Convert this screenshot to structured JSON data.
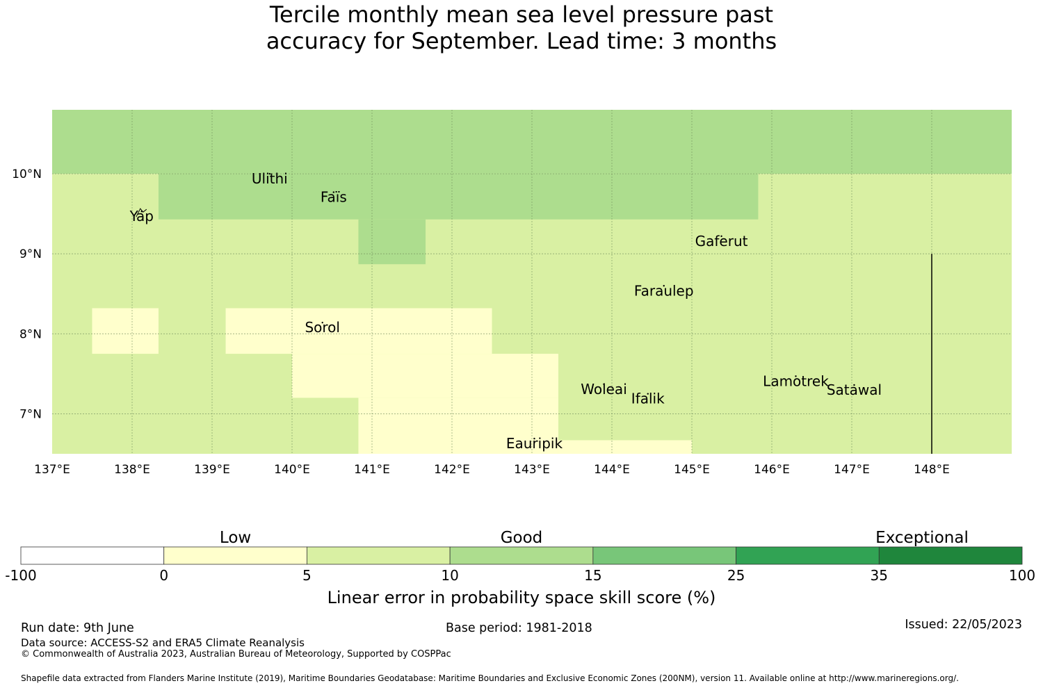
{
  "title": {
    "line1": "Tercile monthly mean sea level pressure past",
    "line2": "accuracy for September. Lead time: 3 months"
  },
  "map": {
    "lon_range": [
      137,
      149
    ],
    "lat_range": [
      6.5,
      10.8
    ],
    "grid_cell_deg": 0.833,
    "x_ticks": [
      "137°E",
      "138°E",
      "139°E",
      "140°E",
      "141°E",
      "142°E",
      "143°E",
      "144°E",
      "145°E",
      "146°E",
      "147°E",
      "148°E"
    ],
    "y_ticks": [
      "10°N",
      "9°N",
      "8°N",
      "7°N"
    ],
    "class_colors": {
      "neg": "#ffffff",
      "low": "#ffffcc",
      "good_low": "#d9f0a3",
      "good_high": "#addd8e",
      "good_top": "#78c679",
      "exc_low": "#31a354",
      "exc_high": "#1f863c"
    },
    "regions": [
      {
        "lon": [
          137.0,
          149.0
        ],
        "lat": [
          10.0,
          10.8
        ],
        "class": "good_high"
      },
      {
        "lon": [
          137.0,
          149.0
        ],
        "lat": [
          6.5,
          10.0
        ],
        "class": "good_low"
      },
      {
        "lon": [
          138.33,
          145.83
        ],
        "lat": [
          9.43,
          10.0
        ],
        "class": "good_high"
      },
      {
        "lon": [
          140.83,
          141.67
        ],
        "lat": [
          8.87,
          9.43
        ],
        "class": "good_high"
      },
      {
        "lon": [
          137.5,
          138.33
        ],
        "lat": [
          7.75,
          8.32
        ],
        "class": "low"
      },
      {
        "lon": [
          139.17,
          142.5
        ],
        "lat": [
          7.75,
          8.32
        ],
        "class": "low"
      },
      {
        "lon": [
          140.0,
          143.33
        ],
        "lat": [
          7.2,
          7.75
        ],
        "class": "low"
      },
      {
        "lon": [
          140.83,
          143.33
        ],
        "lat": [
          6.5,
          7.2
        ],
        "class": "low"
      },
      {
        "lon": [
          143.33,
          145.0
        ],
        "lat": [
          6.5,
          6.67
        ],
        "class": "low"
      }
    ],
    "islands": [
      {
        "name": "Ulithi",
        "lon": 139.72,
        "lat": 10.0
      },
      {
        "name": "Faïs",
        "lon": 140.52,
        "lat": 9.77
      },
      {
        "name": "Yap",
        "lon": 138.12,
        "lat": 9.53
      },
      {
        "name": "Gaferut",
        "lon": 145.37,
        "lat": 9.22
      },
      {
        "name": "Faraulep",
        "lon": 144.65,
        "lat": 8.6
      },
      {
        "name": "Sorol",
        "lon": 140.38,
        "lat": 8.14
      },
      {
        "name": "Woleai",
        "lon": 143.9,
        "lat": 7.37
      },
      {
        "name": "Ifalik",
        "lon": 144.45,
        "lat": 7.25
      },
      {
        "name": "Lamotrek",
        "lon": 146.3,
        "lat": 7.47
      },
      {
        "name": "Satawal",
        "lon": 147.03,
        "lat": 7.36
      },
      {
        "name": "Eauripik",
        "lon": 143.03,
        "lat": 6.69
      }
    ],
    "boundary_lon": 148.0,
    "boundary_lat_range": [
      6.5,
      9.0
    ]
  },
  "legend": {
    "class_labels": [
      "Low",
      "Good",
      "Exceptional"
    ],
    "tick_labels": [
      "-100",
      "0",
      "5",
      "10",
      "15",
      "25",
      "35",
      "100"
    ],
    "bins": [
      "neg",
      "low",
      "good_low",
      "good_high",
      "good_top",
      "exc_low",
      "exc_high"
    ],
    "caption": "Linear error in probability space skill score (%)"
  },
  "footer": {
    "run_date": "Run date: 9th June",
    "base_period": "Base period: 1981-2018",
    "issued": "Issued: 22/05/2023",
    "data_source": "Data source: ACCESS-S2 and ERA5 Climate Reanalysis",
    "copyright": "© Commonwealth of Australia 2023, Australian Bureau of Meteorology, Supported by COSPPac",
    "shapefile": "Shapefile data extracted from Flanders Marine Institute (2019), Maritime Boundaries Geodatabase: Maritime Boundaries and Exclusive Economic Zones (200NM), version 11. Available online at http://www.marineregions.org/."
  }
}
